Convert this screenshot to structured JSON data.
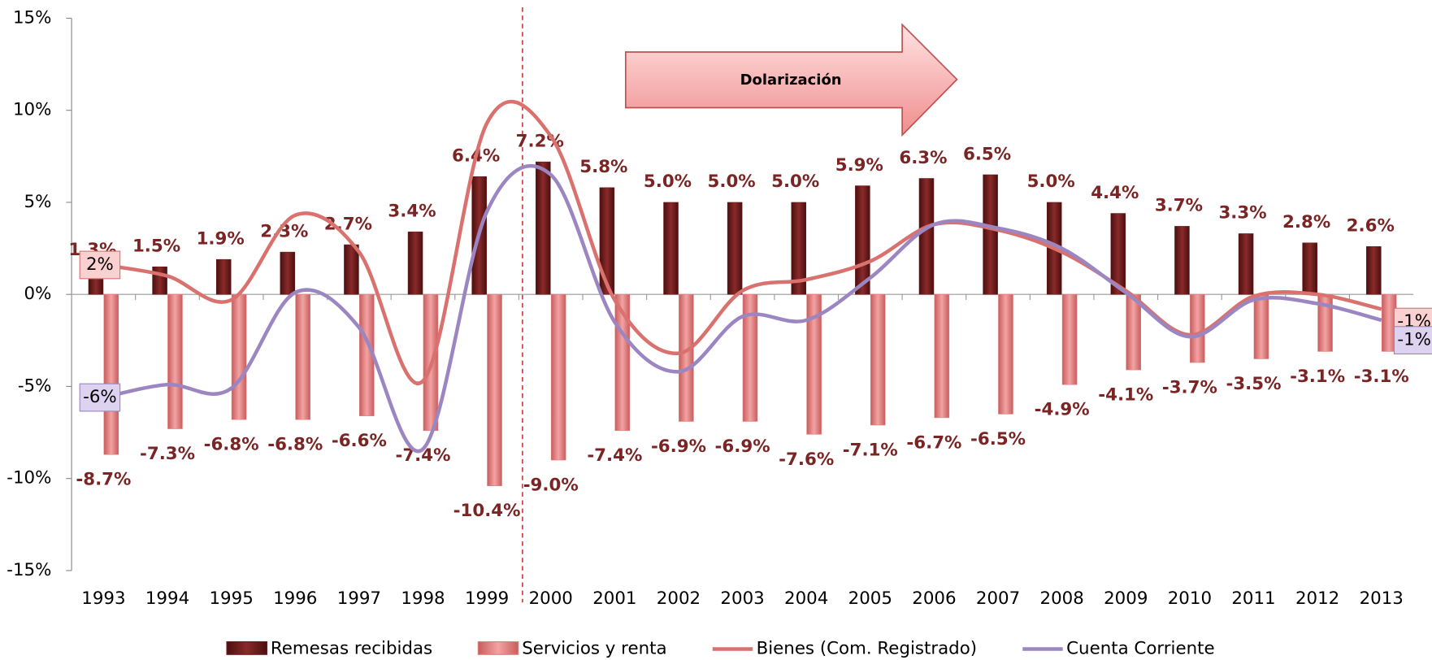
{
  "chart_data": {
    "type": "bar-line",
    "annotation": "Dolarización",
    "categories": [
      "1993",
      "1994",
      "1995",
      "1996",
      "1997",
      "1998",
      "1999",
      "2000",
      "2001",
      "2002",
      "2003",
      "2004",
      "2005",
      "2006",
      "2007",
      "2008",
      "2009",
      "2010",
      "2011",
      "2012",
      "2013"
    ],
    "ylim": [
      -15,
      15
    ],
    "yticks": [
      {
        "value": -15,
        "label": "-15%"
      },
      {
        "value": -10,
        "label": "-10%"
      },
      {
        "value": -5,
        "label": "-5%"
      },
      {
        "value": 0,
        "label": "0%"
      },
      {
        "value": 5,
        "label": "5%"
      },
      {
        "value": 10,
        "label": "10%"
      },
      {
        "value": 15,
        "label": "15%"
      }
    ],
    "series": [
      {
        "name": "Remesas recibidas",
        "type": "bar",
        "color": "#6b1c1c",
        "values": [
          1.3,
          1.5,
          1.9,
          2.3,
          2.7,
          3.4,
          6.4,
          7.2,
          5.8,
          5.0,
          5.0,
          5.0,
          5.9,
          6.3,
          6.5,
          5.0,
          4.4,
          3.7,
          3.3,
          2.8,
          2.6
        ],
        "value_labels": [
          "1.3%",
          "1.5%",
          "1.9%",
          "2.3%",
          "2.7%",
          "3.4%",
          "6.4%",
          "7.2%",
          "5.8%",
          "5.0%",
          "5.0%",
          "5.0%",
          "5.9%",
          "6.3%",
          "6.5%",
          "5.0%",
          "4.4%",
          "3.7%",
          "3.3%",
          "2.8%",
          "2.6%"
        ]
      },
      {
        "name": "Servicios y renta",
        "type": "bar",
        "color": "#e07c7c",
        "values": [
          -8.7,
          -7.3,
          -6.8,
          -6.8,
          -6.6,
          -7.4,
          -10.4,
          -9.0,
          -7.4,
          -6.9,
          -6.9,
          -7.6,
          -7.1,
          -6.7,
          -6.5,
          -4.9,
          -4.1,
          -3.7,
          -3.5,
          -3.1,
          -3.1
        ],
        "value_labels": [
          "-8.7%",
          "-7.3%",
          "-6.8%",
          "-6.8%",
          "-6.6%",
          "-7.4%",
          "-10.4%",
          "-9.0%",
          "-7.4%",
          "-6.9%",
          "-6.9%",
          "-7.6%",
          "-7.1%",
          "-6.7%",
          "-6.5%",
          "-4.9%",
          "-4.1%",
          "-3.7%",
          "-3.5%",
          "-3.1%",
          "-3.1%"
        ]
      },
      {
        "name": "Bienes (Com. Registrado)",
        "type": "line",
        "color": "#d9716e",
        "values": [
          1.6,
          1.0,
          -0.3,
          4.3,
          2.3,
          -4.7,
          9.3,
          8.6,
          -0.3,
          -3.2,
          0.2,
          0.8,
          1.8,
          3.8,
          3.5,
          2.3,
          0.2,
          -2.2,
          -0.1,
          0.0,
          -0.8
        ],
        "value_labels": [
          "2%",
          null,
          null,
          null,
          null,
          null,
          null,
          null,
          null,
          null,
          null,
          null,
          null,
          null,
          null,
          null,
          null,
          null,
          null,
          null,
          "-1%"
        ]
      },
      {
        "name": "Cuenta Corriente",
        "type": "line",
        "color": "#9c86c2",
        "values": [
          -5.6,
          -4.9,
          -5.1,
          0.1,
          -1.8,
          -8.4,
          4.5,
          6.5,
          -1.5,
          -4.2,
          -1.2,
          -1.4,
          0.9,
          3.8,
          3.6,
          2.5,
          0.1,
          -2.3,
          -0.3,
          -0.5,
          -1.4
        ],
        "value_labels": [
          "-6%",
          null,
          null,
          null,
          null,
          null,
          null,
          null,
          null,
          null,
          null,
          null,
          null,
          null,
          null,
          null,
          null,
          null,
          null,
          null,
          "-1%"
        ]
      }
    ]
  }
}
